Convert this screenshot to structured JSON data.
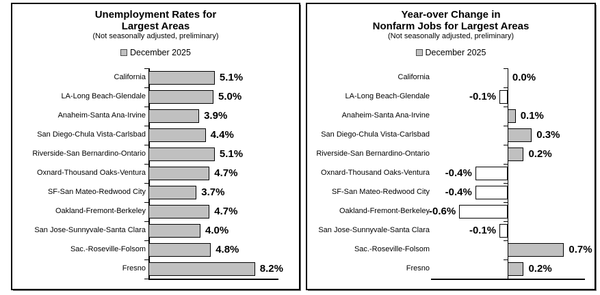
{
  "chart_data": [
    {
      "type": "bar",
      "orientation": "horizontal",
      "title_line1": "Unemployment Rates for",
      "title_line2": "Largest Areas",
      "title": "Unemployment Rates for Largest Areas",
      "subtitle": "(Not seasonally adjusted, preliminary)",
      "legend_label": "December 2025",
      "legend_position": "top-center",
      "legend_marker_color": "#c0c0c0",
      "bar_fill": "#c0c0c0",
      "bar_fill_negative": "#ffffff",
      "bar_border": "#000000",
      "text_color": "#000000",
      "grid": false,
      "unit": "%",
      "xlim": [
        0,
        10
      ],
      "categories": [
        "California",
        "LA-Long Beach-Glendale",
        "Anaheim-Santa Ana-Irvine",
        "San Diego-Chula Vista-Carlsbad",
        "Riverside-San Bernardino-Ontario",
        "Oxnard-Thousand Oaks-Ventura",
        "SF-San Mateo-Redwood City",
        "Oakland-Fremont-Berkeley",
        "San Jose-Sunnyvale-Santa Clara",
        "Sac.-Roseville-Folsom",
        "Fresno"
      ],
      "values": [
        5.1,
        5.0,
        3.9,
        4.4,
        5.1,
        4.7,
        3.7,
        4.7,
        4.0,
        4.8,
        8.2
      ],
      "value_labels": [
        "5.1%",
        "5.0%",
        "3.9%",
        "4.4%",
        "5.1%",
        "4.7%",
        "3.7%",
        "4.7%",
        "4.0%",
        "4.8%",
        "8.2%"
      ]
    },
    {
      "type": "bar",
      "orientation": "horizontal",
      "title_line1": "Year-over Change in",
      "title_line2": "Nonfarm Jobs for Largest Areas",
      "title": "Year-over Change in Nonfarm Jobs for Largest Areas",
      "subtitle": "(Not seasonally adjusted, preliminary)",
      "legend_label": "December 2025",
      "legend_position": "top-center",
      "legend_marker_color": "#c0c0c0",
      "bar_fill": "#c0c0c0",
      "bar_fill_negative": "#ffffff",
      "bar_border": "#000000",
      "text_color": "#000000",
      "grid": false,
      "unit": "%",
      "xlim": [
        -0.95,
        0.96
      ],
      "categories": [
        "California",
        "LA-Long Beach-Glendale",
        "Anaheim-Santa Ana-Irvine",
        "San Diego-Chula Vista-Carlsbad",
        "Riverside-San Bernardino-Ontario",
        "Oxnard-Thousand Oaks-Ventura",
        "SF-San Mateo-Redwood City",
        "Oakland-Fremont-Berkeley",
        "San Jose-Sunnyvale-Santa Clara",
        "Sac.-Roseville-Folsom",
        "Fresno"
      ],
      "values": [
        0.0,
        -0.1,
        0.1,
        0.3,
        0.2,
        -0.4,
        -0.4,
        -0.6,
        -0.1,
        0.7,
        0.2
      ],
      "value_labels": [
        "0.0%",
        "-0.1%",
        "0.1%",
        "0.3%",
        "0.2%",
        "-0.4%",
        "-0.4%",
        "-0.6%",
        "-0.1%",
        "0.7%",
        "0.2%"
      ]
    }
  ]
}
